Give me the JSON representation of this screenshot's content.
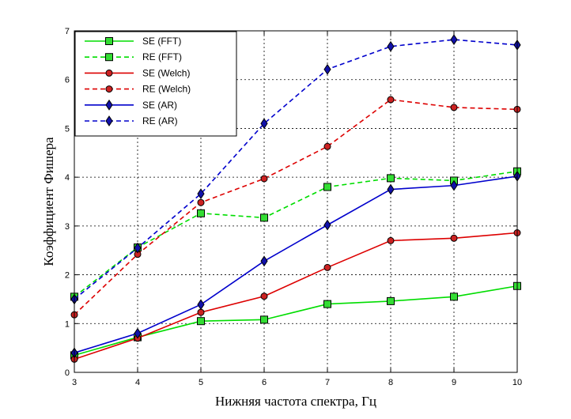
{
  "chart_data": {
    "type": "line",
    "xlabel": "Нижняя частота спектра, Гц",
    "ylabel": "Коэффициент Фишера",
    "xlim": [
      3,
      10
    ],
    "ylim": [
      0,
      7
    ],
    "x": [
      3,
      4,
      5,
      6,
      7,
      8,
      9,
      10
    ],
    "xticks": [
      "3",
      "4",
      "5",
      "6",
      "7",
      "8",
      "9",
      "10"
    ],
    "yticks": [
      "0",
      "1",
      "2",
      "3",
      "4",
      "5",
      "6",
      "7"
    ],
    "grid": true,
    "legend_position": "top-left",
    "series": [
      {
        "name": "SE (FFT)",
        "color": "#00dd00",
        "dash": "solid",
        "marker": "square",
        "values": [
          0.35,
          0.72,
          1.05,
          1.08,
          1.4,
          1.46,
          1.55,
          1.77
        ]
      },
      {
        "name": "RE (FFT)",
        "color": "#00dd00",
        "dash": "dashed",
        "marker": "square",
        "values": [
          1.55,
          2.56,
          3.26,
          3.17,
          3.8,
          3.98,
          3.93,
          4.12
        ]
      },
      {
        "name": "SE (Welch)",
        "color": "#dd0000",
        "dash": "solid",
        "marker": "circle",
        "values": [
          0.27,
          0.7,
          1.23,
          1.56,
          2.15,
          2.7,
          2.75,
          2.86
        ]
      },
      {
        "name": "RE (Welch)",
        "color": "#dd0000",
        "dash": "dashed",
        "marker": "circle",
        "values": [
          1.18,
          2.42,
          3.48,
          3.97,
          4.63,
          5.59,
          5.43,
          5.39
        ]
      },
      {
        "name": "SE (AR)",
        "color": "#0000cc",
        "dash": "solid",
        "marker": "diamond",
        "values": [
          0.4,
          0.8,
          1.39,
          2.28,
          3.02,
          3.75,
          3.83,
          4.02
        ]
      },
      {
        "name": "RE (AR)",
        "color": "#0000cc",
        "dash": "dashed",
        "marker": "diamond",
        "values": [
          1.5,
          2.55,
          3.66,
          5.1,
          6.21,
          6.68,
          6.82,
          6.71
        ]
      }
    ]
  }
}
